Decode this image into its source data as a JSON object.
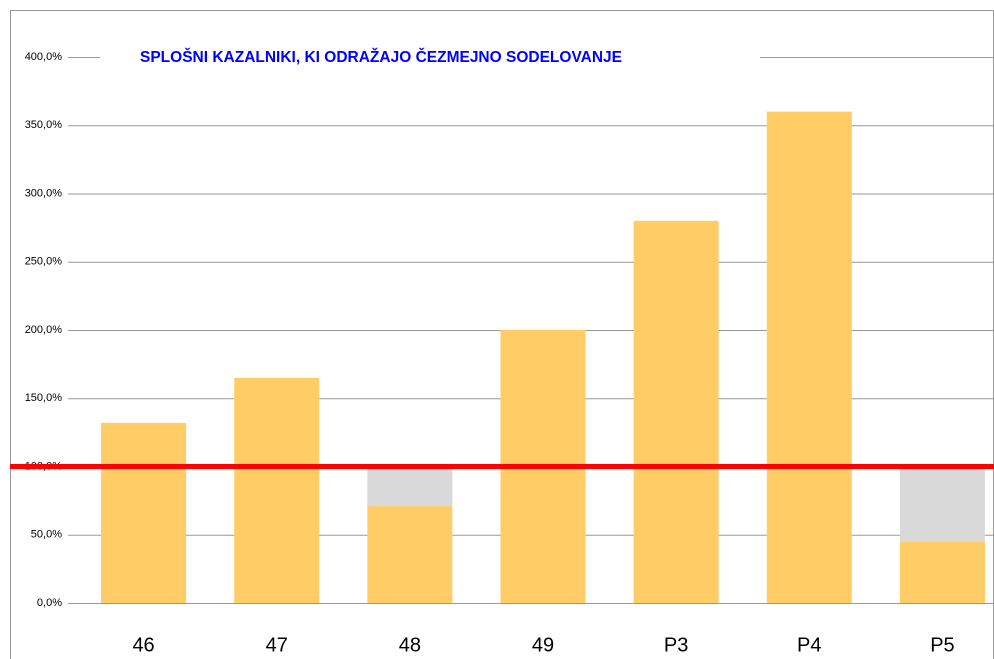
{
  "chart_data": {
    "type": "bar",
    "stacked": true,
    "title": "SPLOŠNI KAZALNIKI, KI ODRAŽAJO ČEZMEJNO SODELOVANJE",
    "categories": [
      "46",
      "47",
      "48",
      "49",
      "P3",
      "P4",
      "P5"
    ],
    "series": [
      {
        "color": "#ffcc66",
        "values": [
          132,
          165,
          71,
          200,
          280,
          360,
          45
        ]
      },
      {
        "color": "#d9d9d9",
        "values": [
          null,
          null,
          29,
          null,
          null,
          null,
          55
        ]
      }
    ],
    "ylim": [
      0,
      400
    ],
    "yticks": [
      {
        "value": 0,
        "label": "0,0%"
      },
      {
        "value": 50,
        "label": "50,0%"
      },
      {
        "value": 100,
        "label": "100,0%"
      },
      {
        "value": 150,
        "label": "150,0%"
      },
      {
        "value": 200,
        "label": "200,0%"
      },
      {
        "value": 250,
        "label": "250,0%"
      },
      {
        "value": 300,
        "label": "300,0%"
      },
      {
        "value": 350,
        "label": "350,0%"
      },
      {
        "value": 400,
        "label": "400,0%"
      }
    ],
    "grid": true,
    "reference_line": {
      "value": 100,
      "color": "#ff0000"
    }
  }
}
